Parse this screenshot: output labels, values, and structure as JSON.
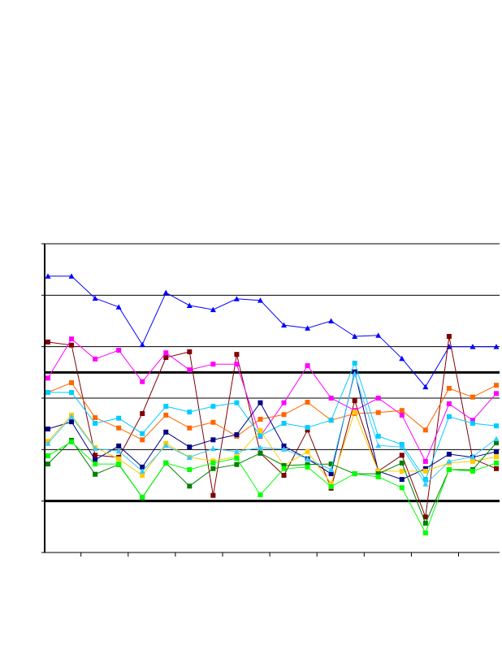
{
  "chart_data": {
    "type": "line",
    "categories": [
      null,
      null,
      null,
      null,
      null,
      null,
      null,
      null,
      null,
      null,
      null,
      null,
      null,
      null,
      null,
      null,
      null,
      null,
      null,
      null
    ],
    "ylim": [
      0,
      6
    ],
    "yticks": [
      0,
      1,
      2,
      3,
      4,
      5,
      6
    ],
    "grid": true,
    "reference_lines": [
      1,
      3.5
    ],
    "series": [
      {
        "color": "#0000ff",
        "marker": "triangle",
        "values": [
          5.37,
          5.37,
          4.94,
          4.77,
          4.04,
          5.05,
          4.8,
          4.72,
          4.93,
          4.9,
          4.42,
          4.36,
          4.5,
          4.2,
          4.22,
          3.77,
          3.22,
          4.0,
          4.0,
          4.0
        ]
      },
      {
        "color": "#800000",
        "marker": "square",
        "values": [
          4.09,
          4.03,
          1.89,
          1.85,
          2.7,
          3.79,
          3.9,
          1.11,
          3.85,
          1.93,
          1.5,
          2.38,
          1.25,
          2.95,
          1.58,
          1.89,
          0.69,
          4.2,
          1.82,
          1.63
        ]
      },
      {
        "color": "#ff00ff",
        "marker": "square",
        "values": [
          3.39,
          4.15,
          3.76,
          3.93,
          3.32,
          3.88,
          3.55,
          3.66,
          3.66,
          2.26,
          2.91,
          3.63,
          3.0,
          2.76,
          3.0,
          2.67,
          1.77,
          2.89,
          2.57,
          3.09
        ]
      },
      {
        "color": "#ff6600",
        "marker": "square",
        "values": [
          3.11,
          3.3,
          2.62,
          2.42,
          2.19,
          2.67,
          2.42,
          2.53,
          2.26,
          2.59,
          2.68,
          2.92,
          2.57,
          2.7,
          2.72,
          2.76,
          2.38,
          3.19,
          3.02,
          3.25
        ]
      },
      {
        "color": "#00ccff",
        "marker": "square",
        "values": [
          3.11,
          3.11,
          2.51,
          2.61,
          2.31,
          2.84,
          2.73,
          2.84,
          2.91,
          2.27,
          2.51,
          2.43,
          2.57,
          3.68,
          2.26,
          2.1,
          1.42,
          2.64,
          2.51,
          2.46
        ]
      },
      {
        "color": "#000080",
        "marker": "square",
        "values": [
          2.4,
          2.54,
          1.8,
          2.07,
          1.66,
          2.34,
          2.05,
          2.19,
          2.29,
          2.91,
          2.07,
          1.82,
          1.53,
          3.51,
          1.58,
          1.42,
          1.63,
          1.91,
          1.85,
          1.96
        ]
      },
      {
        "color": "#ffcc00",
        "marker": "square",
        "values": [
          2.16,
          2.67,
          2.04,
          1.82,
          1.5,
          2.12,
          1.85,
          1.78,
          1.86,
          2.37,
          1.69,
          1.96,
          1.34,
          2.73,
          1.58,
          1.58,
          1.58,
          1.74,
          1.77,
          1.86
        ]
      },
      {
        "color": "#008000",
        "marker": "square",
        "values": [
          1.72,
          2.18,
          1.52,
          1.71,
          1.07,
          1.74,
          1.29,
          1.63,
          1.71,
          1.93,
          1.69,
          1.71,
          1.72,
          1.53,
          1.53,
          1.74,
          0.57,
          1.61,
          1.61,
          2.13
        ]
      },
      {
        "color": "#00ff00",
        "marker": "square",
        "values": [
          1.88,
          2.15,
          1.72,
          1.72,
          1.07,
          1.74,
          1.61,
          1.74,
          1.83,
          1.12,
          1.63,
          1.66,
          1.28,
          1.53,
          1.47,
          1.26,
          0.38,
          1.61,
          1.58,
          1.74
        ]
      },
      {
        "color": "#33ccff",
        "marker": "triangle",
        "values": [
          2.12,
          2.64,
          2.02,
          1.97,
          1.58,
          2.08,
          1.85,
          2.02,
          1.96,
          2.04,
          2.01,
          1.82,
          1.61,
          3.47,
          2.08,
          2.05,
          1.33,
          1.77,
          1.86,
          2.21
        ]
      }
    ]
  }
}
